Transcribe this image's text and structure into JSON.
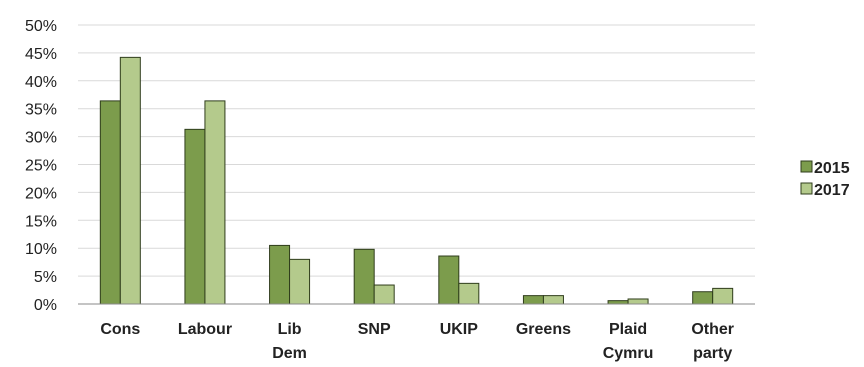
{
  "chart_data": {
    "type": "bar",
    "categories": [
      [
        "Cons"
      ],
      [
        "Labour"
      ],
      [
        "Lib",
        "Dem"
      ],
      [
        "SNP"
      ],
      [
        "UKIP"
      ],
      [
        "Greens"
      ],
      [
        "Plaid",
        "Cymru"
      ],
      [
        "Other",
        "party"
      ]
    ],
    "series": [
      {
        "name": "2015",
        "color": "#7c9c4c",
        "values": [
          36.4,
          31.3,
          10.5,
          9.8,
          8.6,
          1.5,
          0.6,
          2.2
        ]
      },
      {
        "name": "2017",
        "color": "#b4ca8c",
        "values": [
          44.2,
          36.4,
          8.0,
          3.4,
          3.7,
          1.5,
          0.9,
          2.8
        ]
      }
    ],
    "y_ticks": [
      "0%",
      "5%",
      "10%",
      "15%",
      "20%",
      "25%",
      "30%",
      "35%",
      "40%",
      "45%",
      "50%"
    ],
    "ylim": [
      0,
      50
    ],
    "grid": true,
    "legend_position": "right"
  }
}
